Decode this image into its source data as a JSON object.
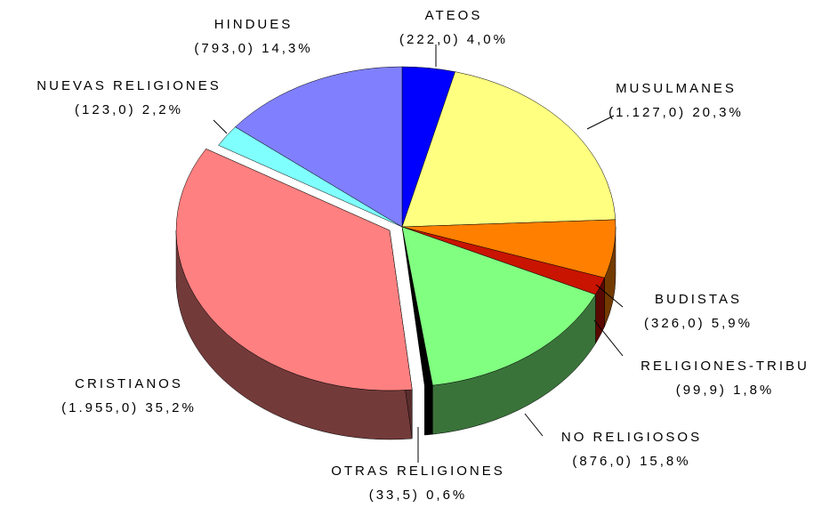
{
  "chart_data": {
    "type": "pie",
    "categories": [
      "ATEOS",
      "MUSULMANES",
      "BUDISTAS",
      "RELIGIONES-TRIBU",
      "NO RELIGIOSOS",
      "OTRAS RELIGIONES",
      "CRISTIANOS",
      "NUEVAS RELIGIONES",
      "HINDUES"
    ],
    "values": [
      222.0,
      1127.0,
      326.0,
      99.9,
      876.0,
      33.5,
      1955.0,
      123.0,
      793.0
    ],
    "value_labels": [
      "(222,0)  4,0%",
      "(1.127,0)  20,3%",
      "(326,0)  5,9%",
      "(99,9)  1,8%",
      "(876,0)  15,8%",
      "(33,5)  0,6%",
      "(1.955,0)  35,2%",
      "(123,0)  2,2%",
      "(793,0)  14,3%"
    ],
    "colors": [
      "#0000ff",
      "#ffff80",
      "#ff8000",
      "#c81400",
      "#80ff80",
      "#000000",
      "#ff8080",
      "#80ffff",
      "#8080ff"
    ]
  }
}
